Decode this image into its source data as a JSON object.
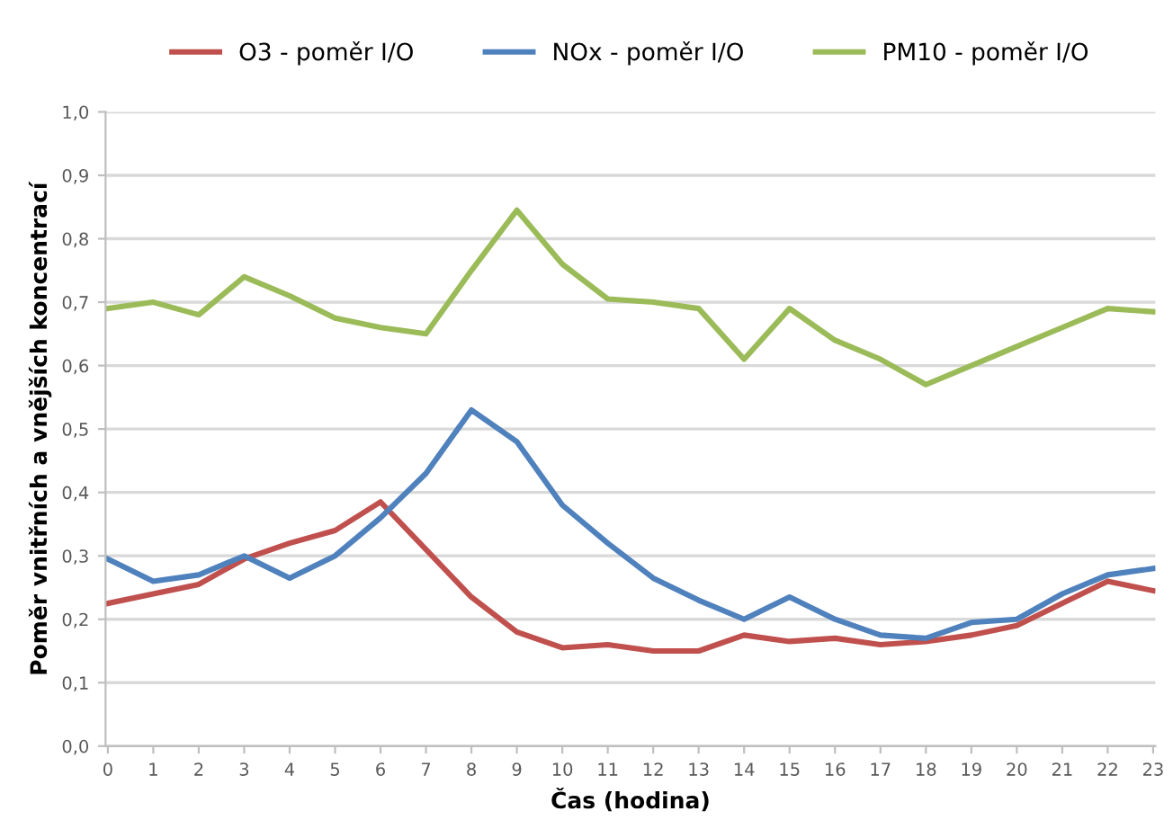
{
  "chart_data": {
    "type": "line",
    "xlabel": "Čas (hodina)",
    "ylabel": "Poměr vnitřních a vnějších koncentrací",
    "categories": [
      "0",
      "1",
      "2",
      "3",
      "4",
      "5",
      "6",
      "7",
      "8",
      "9",
      "10",
      "11",
      "12",
      "13",
      "14",
      "15",
      "16",
      "17",
      "18",
      "19",
      "20",
      "21",
      "22",
      "23"
    ],
    "series": [
      {
        "name": "O3 - poměr I/O",
        "color": "#c0504d",
        "values": [
          0.225,
          0.24,
          0.255,
          0.295,
          0.32,
          0.34,
          0.385,
          0.31,
          0.235,
          0.18,
          0.155,
          0.16,
          0.15,
          0.15,
          0.175,
          0.165,
          0.17,
          0.16,
          0.165,
          0.175,
          0.19,
          0.225,
          0.26,
          0.245
        ]
      },
      {
        "name": "NOx - poměr I/O",
        "color": "#4f81bd",
        "values": [
          0.295,
          0.26,
          0.27,
          0.3,
          0.265,
          0.3,
          0.36,
          0.43,
          0.53,
          0.48,
          0.38,
          0.32,
          0.265,
          0.23,
          0.2,
          0.235,
          0.2,
          0.175,
          0.17,
          0.195,
          0.2,
          0.24,
          0.27,
          0.28
        ]
      },
      {
        "name": "PM10 - poměr I/O",
        "color": "#9bbb59",
        "values": [
          0.69,
          0.7,
          0.68,
          0.74,
          0.71,
          0.675,
          0.66,
          0.65,
          0.75,
          0.845,
          0.76,
          0.705,
          0.7,
          0.69,
          0.61,
          0.69,
          0.64,
          0.61,
          0.57,
          0.6,
          0.63,
          0.66,
          0.69,
          0.685
        ]
      }
    ],
    "ylim": [
      0,
      1
    ],
    "yticks": [
      {
        "value": 0,
        "label": "0,0"
      },
      {
        "value": 0.1,
        "label": "0,1"
      },
      {
        "value": 0.2,
        "label": "0,2"
      },
      {
        "value": 0.3,
        "label": "0,3"
      },
      {
        "value": 0.4,
        "label": "0,4"
      },
      {
        "value": 0.5,
        "label": "0,5"
      },
      {
        "value": 0.6,
        "label": "0,6"
      },
      {
        "value": 0.7,
        "label": "0,7"
      },
      {
        "value": 0.8,
        "label": "0,8"
      },
      {
        "value": 0.9,
        "label": "0,9"
      },
      {
        "value": 1,
        "label": "1,0"
      }
    ],
    "grid": "y",
    "legend": "top",
    "marker": "none",
    "line_style": "solid"
  }
}
